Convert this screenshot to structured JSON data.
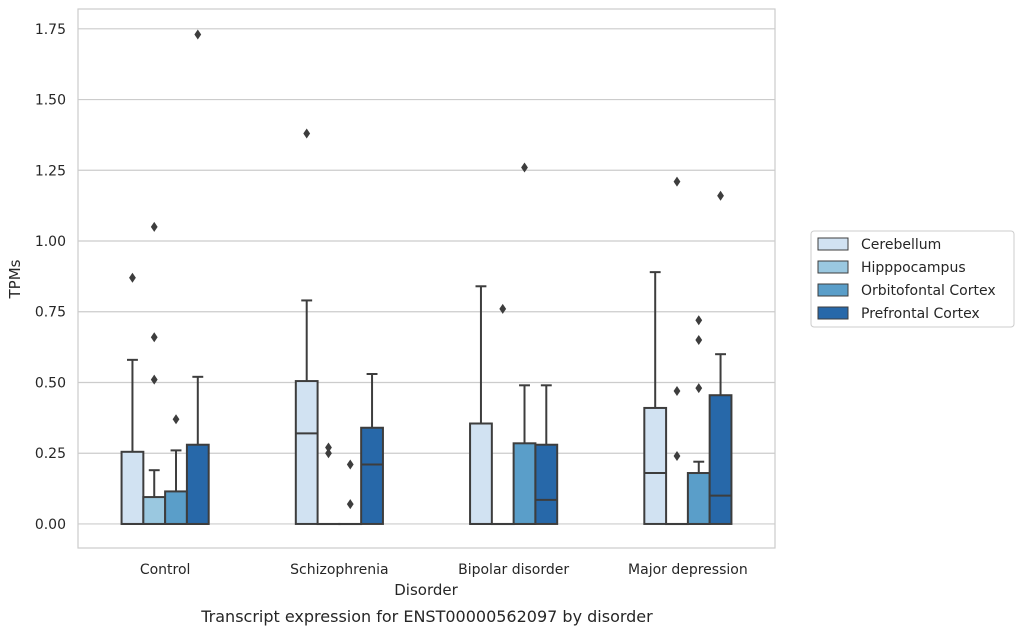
{
  "chart_data": {
    "type": "box",
    "caption": "Transcript expression for ENST00000562097 by disorder",
    "xlabel": "Disorder",
    "ylabel": "TPMs",
    "ylim": [
      -0.085,
      1.82
    ],
    "yticks": [
      0.0,
      0.25,
      0.5,
      0.75,
      1.0,
      1.25,
      1.5,
      1.75
    ],
    "ytick_labels": [
      "0.00",
      "0.25",
      "0.50",
      "0.75",
      "1.00",
      "1.25",
      "1.50",
      "1.75"
    ],
    "grid": true,
    "legend_position": "right",
    "categories": [
      "Control",
      "Schizophrenia",
      "Bipolar disorder",
      "Major depression"
    ],
    "series": [
      {
        "name": "Cerebellum",
        "color": "#d1e2f2",
        "boxes": [
          {
            "q1": 0.0,
            "median": 0.0,
            "q3": 0.255,
            "whisker_low": 0.0,
            "whisker_high": 0.58,
            "outliers": [
              0.87
            ]
          },
          {
            "q1": 0.0,
            "median": 0.32,
            "q3": 0.505,
            "whisker_low": 0.0,
            "whisker_high": 0.79,
            "outliers": [
              1.38
            ]
          },
          {
            "q1": 0.0,
            "median": 0.0,
            "q3": 0.355,
            "whisker_low": 0.0,
            "whisker_high": 0.84,
            "outliers": []
          },
          {
            "q1": 0.0,
            "median": 0.18,
            "q3": 0.41,
            "whisker_low": 0.0,
            "whisker_high": 0.89,
            "outliers": []
          }
        ]
      },
      {
        "name": "Hipppocampus",
        "color": "#9ac8e0",
        "boxes": [
          {
            "q1": 0.0,
            "median": 0.0,
            "q3": 0.095,
            "whisker_low": 0.0,
            "whisker_high": 0.19,
            "outliers": [
              0.51,
              0.66,
              1.05
            ]
          },
          {
            "q1": 0.0,
            "median": 0.0,
            "q3": 0.0,
            "whisker_low": 0.0,
            "whisker_high": 0.0,
            "outliers": [
              0.25,
              0.27
            ]
          },
          {
            "q1": 0.0,
            "median": 0.0,
            "q3": 0.0,
            "whisker_low": 0.0,
            "whisker_high": 0.0,
            "outliers": [
              0.76
            ]
          },
          {
            "q1": 0.0,
            "median": 0.0,
            "q3": 0.0,
            "whisker_low": 0.0,
            "whisker_high": 0.0,
            "outliers": [
              0.24,
              0.47,
              1.21
            ]
          }
        ]
      },
      {
        "name": "Orbitofontal Cortex",
        "color": "#5a9ec9",
        "boxes": [
          {
            "q1": 0.0,
            "median": 0.0,
            "q3": 0.115,
            "whisker_low": 0.0,
            "whisker_high": 0.26,
            "outliers": [
              0.37
            ]
          },
          {
            "q1": 0.0,
            "median": 0.0,
            "q3": 0.0,
            "whisker_low": 0.0,
            "whisker_high": 0.0,
            "outliers": [
              0.07,
              0.21
            ]
          },
          {
            "q1": 0.0,
            "median": 0.0,
            "q3": 0.285,
            "whisker_low": 0.0,
            "whisker_high": 0.49,
            "outliers": [
              1.26
            ]
          },
          {
            "q1": 0.0,
            "median": 0.0,
            "q3": 0.18,
            "whisker_low": 0.0,
            "whisker_high": 0.22,
            "outliers": [
              0.48,
              0.65,
              0.72
            ]
          }
        ]
      },
      {
        "name": "Prefrontal Cortex",
        "color": "#2768a9",
        "boxes": [
          {
            "q1": 0.0,
            "median": 0.0,
            "q3": 0.28,
            "whisker_low": 0.0,
            "whisker_high": 0.52,
            "outliers": [
              1.73
            ]
          },
          {
            "q1": 0.0,
            "median": 0.21,
            "q3": 0.34,
            "whisker_low": 0.0,
            "whisker_high": 0.53,
            "outliers": []
          },
          {
            "q1": 0.0,
            "median": 0.085,
            "q3": 0.28,
            "whisker_low": 0.0,
            "whisker_high": 0.49,
            "outliers": []
          },
          {
            "q1": 0.0,
            "median": 0.1,
            "q3": 0.455,
            "whisker_low": 0.0,
            "whisker_high": 0.6,
            "outliers": [
              1.16
            ]
          }
        ]
      }
    ]
  }
}
